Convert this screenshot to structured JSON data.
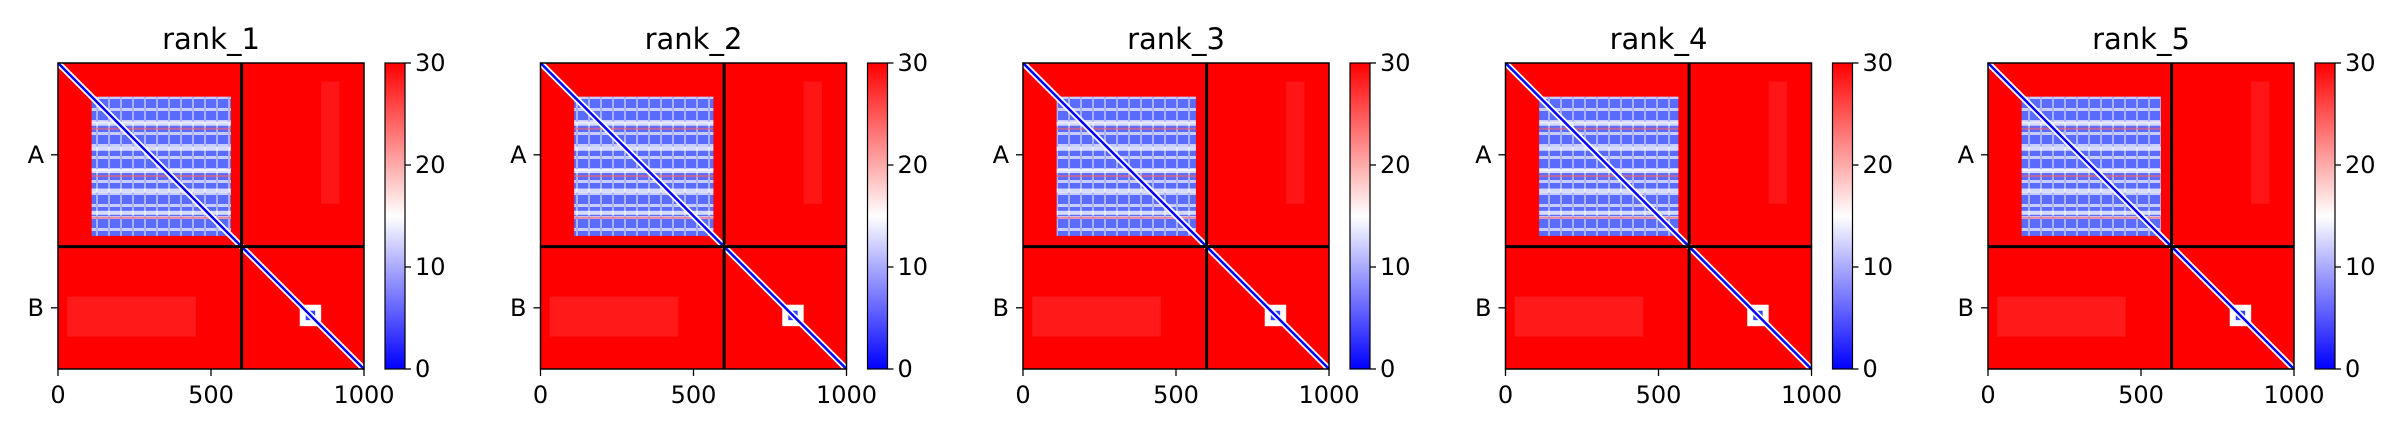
{
  "chart_data": {
    "type": "heatmap",
    "description_scale": "predicted aligned error matrices, two chains",
    "colormap": {
      "low": "#0000ff",
      "mid": "#ffffff",
      "high": "#ff0000"
    },
    "color_range": [
      0,
      30
    ],
    "colorbar_ticks": [
      "0",
      "10",
      "20",
      "30"
    ],
    "x_range": [
      0,
      1000
    ],
    "x_ticks": [
      "0",
      "500",
      "1000"
    ],
    "chain_boundary": 600,
    "y_labels": [
      "A",
      "B"
    ],
    "panels": [
      {
        "title": "rank_1"
      },
      {
        "title": "rank_2"
      },
      {
        "title": "rank_3"
      },
      {
        "title": "rank_4"
      },
      {
        "title": "rank_5"
      }
    ]
  }
}
